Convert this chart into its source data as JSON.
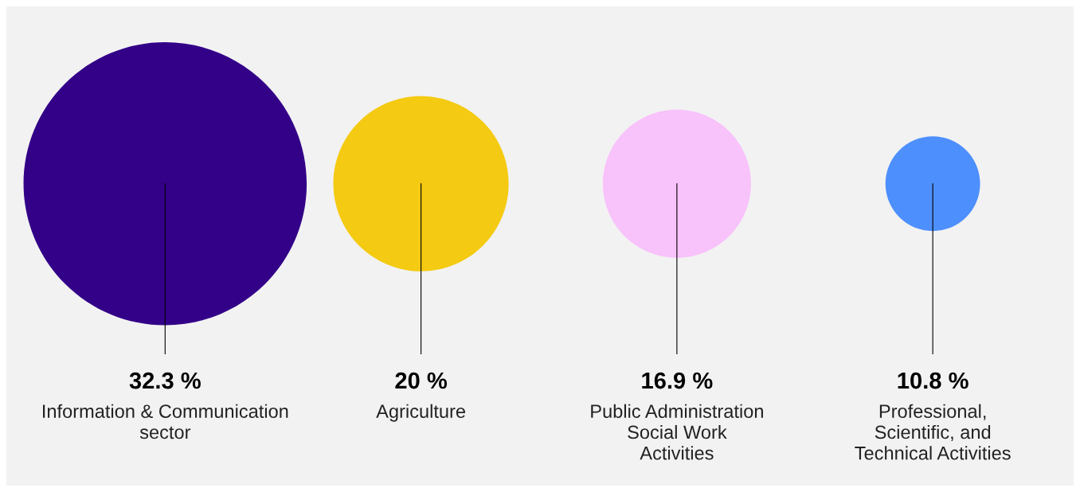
{
  "chart_data": {
    "type": "other",
    "categories": [
      "Information & Communication\nsector",
      "Agriculture",
      "Public Administration\nSocial Work\nActivities",
      "Professional,\nScientific, and\nTechnical Activities"
    ],
    "values": [
      32.3,
      20,
      16.9,
      10.8
    ],
    "value_labels": [
      "32.3 %",
      "20 %",
      "16.9 %",
      "10.8 %"
    ],
    "colors": [
      "#330088",
      "#f4ca12",
      "#f8c2fb",
      "#4d8ffd"
    ]
  }
}
